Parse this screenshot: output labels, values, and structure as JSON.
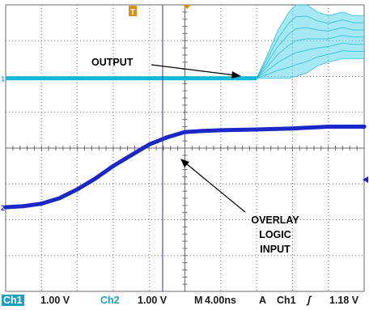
{
  "colors": {
    "background": "#ffffff",
    "grid": "#6a6a6a",
    "ch1_trace": "#12b8d6",
    "ch1_trace_light": "#5fd6ec",
    "ch2_trace": "#1a28c8",
    "cursor_line": "#2b2fa8",
    "trigger_marker": "#e08a10",
    "ch1_tag_bg": "#1aa0c0",
    "ch2_tag_color": "#1aa0c0"
  },
  "annotations": {
    "output": "OUTPUT",
    "overlay_line1": "OVERLAY",
    "overlay_line2": "LOGIC",
    "overlay_line3": "INPUT"
  },
  "markers": {
    "trigger_position": "T",
    "ch1_ground": "1",
    "ch2_ground": "2",
    "trigger_level": "arrow-left-icon"
  },
  "status": {
    "ch1_label": "Ch1",
    "ch1_scale": "1.00 V",
    "ch2_label": "Ch2",
    "ch2_scale": "1.00 V",
    "timebase_prefix": "M",
    "timebase": "4.00ns",
    "trigger_mode": "A",
    "trigger_channel": "Ch1",
    "trigger_slope_icon": "rising-edge-icon",
    "trigger_level": "1.18 V"
  },
  "chart_data": {
    "type": "line",
    "title": "",
    "xlabel": "",
    "ylabel": "",
    "grid": true,
    "x_divisions": 10,
    "y_divisions": 8,
    "x_unit": "div (4.00 ns/div)",
    "y_unit": "div (1.00 V/div)",
    "xlim": [
      0,
      10
    ],
    "ylim": [
      0,
      8
    ],
    "series": [
      {
        "name": "Ch1",
        "style": "persistence envelope (many overlaid traces)",
        "x": [
          0,
          7.0,
          7.3,
          7.6,
          7.9,
          8.1,
          8.4,
          8.7,
          9.0,
          9.4,
          9.7,
          10
        ],
        "y_upper": [
          5.95,
          5.95,
          6.6,
          7.3,
          7.8,
          8.0,
          8.0,
          7.8,
          7.7,
          7.8,
          7.7,
          7.7
        ],
        "y_lower": [
          5.95,
          5.95,
          5.95,
          5.95,
          5.95,
          6.0,
          6.1,
          6.3,
          6.4,
          6.5,
          6.5,
          6.5
        ]
      },
      {
        "name": "Ch2",
        "style": "single thick trace",
        "x": [
          0,
          0.5,
          1.0,
          1.5,
          2.0,
          2.5,
          3.0,
          3.5,
          4.0,
          4.5,
          5.0,
          5.5,
          6.0,
          7.0,
          8.0,
          9.0,
          10.0
        ],
        "y": [
          2.35,
          2.38,
          2.45,
          2.6,
          2.85,
          3.15,
          3.5,
          3.8,
          4.1,
          4.3,
          4.45,
          4.48,
          4.5,
          4.52,
          4.55,
          4.6,
          4.6
        ]
      }
    ]
  }
}
